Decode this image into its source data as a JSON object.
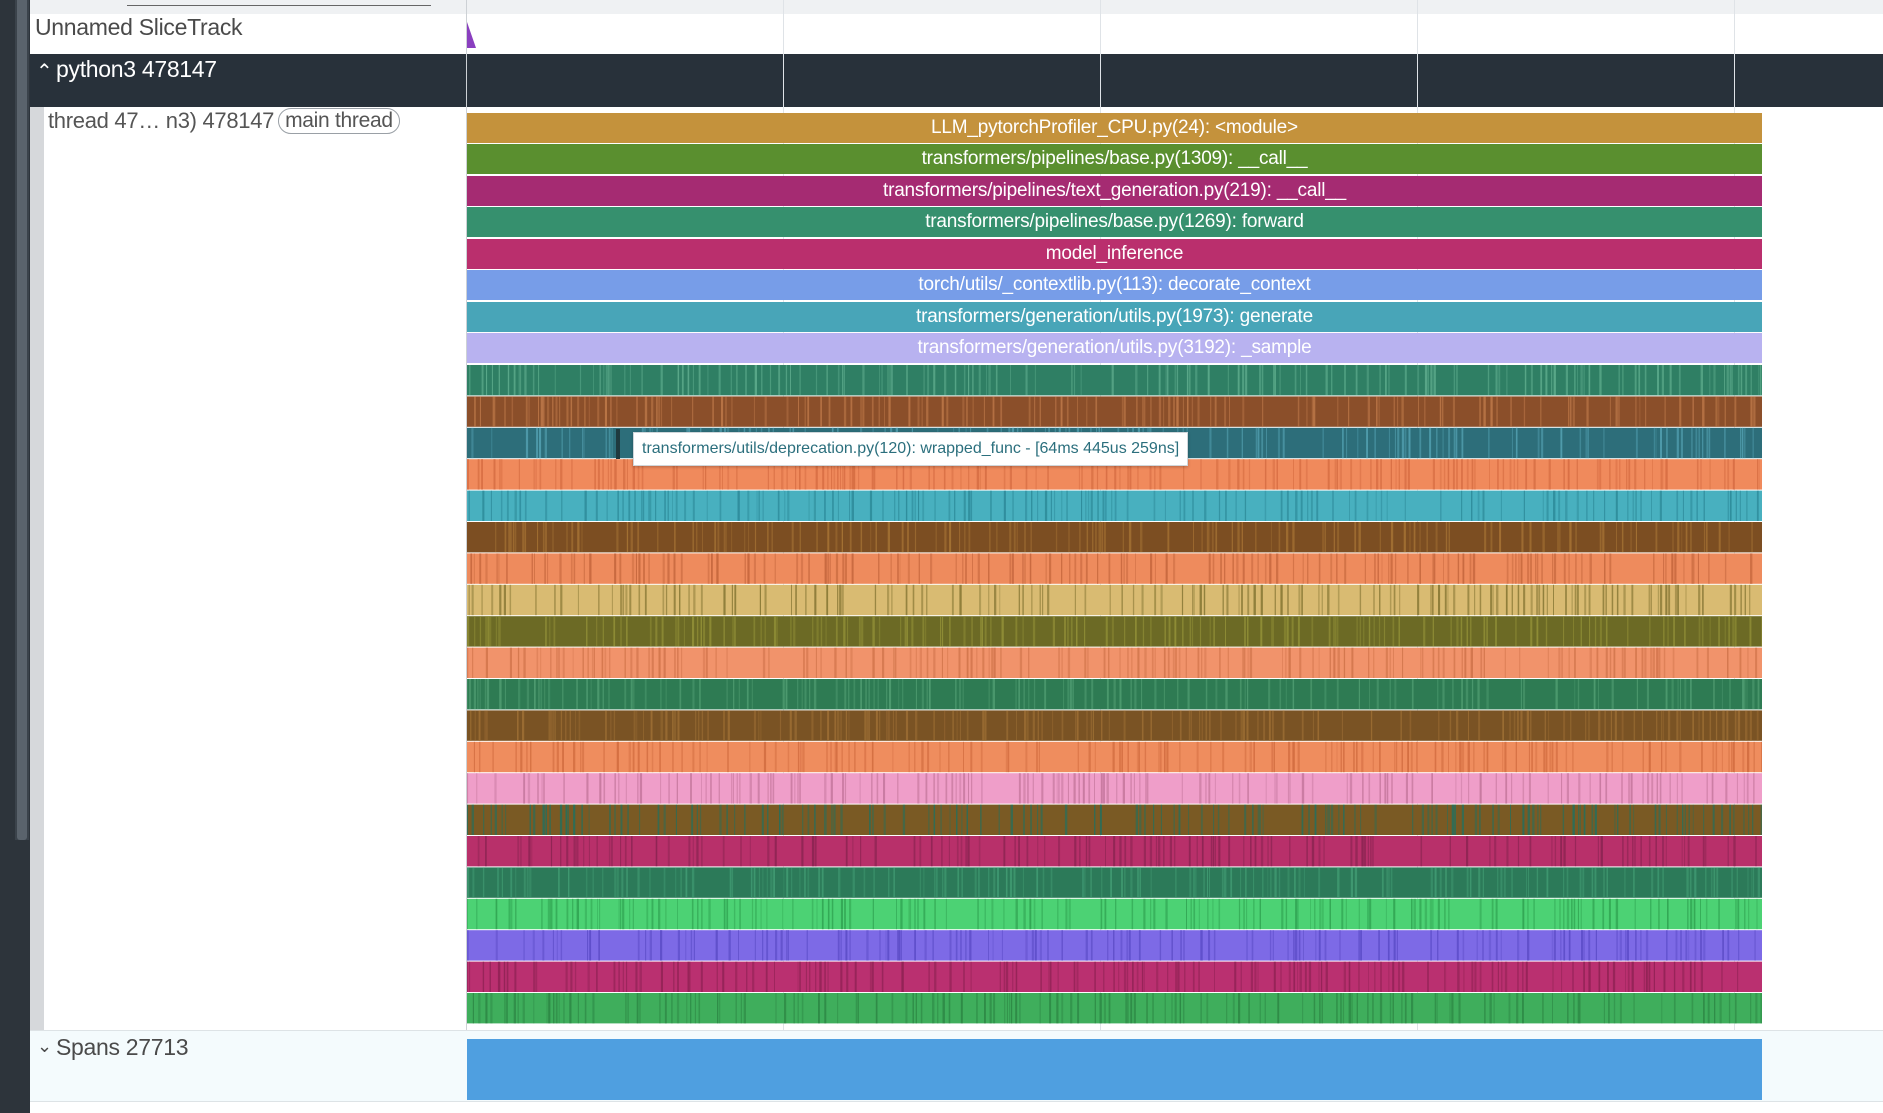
{
  "tracks": {
    "unnamed_track_label": "Unnamed SliceTrack",
    "process_group_title": "python3 478147",
    "thread_label": "thread 47… n3) 478147",
    "thread_chip": "main thread",
    "spans_label": "Spans 27713"
  },
  "slices": [
    {
      "label": "LLM_pytorchProfiler_CPU.py(24): <module>",
      "color": "#c4923c"
    },
    {
      "label": "transformers/pipelines/base.py(1309): __call__",
      "color": "#5a8f2f"
    },
    {
      "label": "transformers/pipelines/text_generation.py(219): __call__",
      "color": "#a52b72"
    },
    {
      "label": "transformers/pipelines/base.py(1269): forward",
      "color": "#36906e"
    },
    {
      "label": "model_inference",
      "color": "#ba2f6d"
    },
    {
      "label": "torch/utils/_contextlib.py(113): decorate_context",
      "color": "#779de8"
    },
    {
      "label": "transformers/generation/utils.py(1973): generate",
      "color": "#48a5b8"
    },
    {
      "label": "transformers/generation/utils.py(3192): _sample",
      "color": "#b8b2f0"
    }
  ],
  "dense_rows": [
    {
      "base": "#2f7f64",
      "stripe": "#5aa889"
    },
    {
      "base": "#8b4f2a",
      "stripe": "#b87446"
    },
    {
      "base": "#2d6e7a",
      "stripe": "#4f9bab"
    },
    {
      "base": "#f08a5c",
      "stripe": "#d86f44"
    },
    {
      "base": "#48b0bf",
      "stripe": "#2f8d9c"
    },
    {
      "base": "#7c4e22",
      "stripe": "#a27033"
    },
    {
      "base": "#ee8b5d",
      "stripe": "#c8693f"
    },
    {
      "base": "#d9bb72",
      "stripe": "#8e7d3a"
    },
    {
      "base": "#6c6a25",
      "stripe": "#8f8d36"
    },
    {
      "base": "#f1936b",
      "stripe": "#d4774e"
    },
    {
      "base": "#2e7b53",
      "stripe": "#4d9a6f"
    },
    {
      "base": "#7a5324",
      "stripe": "#9a6c33"
    },
    {
      "base": "#ef8d5e",
      "stripe": "#d46f42"
    },
    {
      "base": "#ef9ec9",
      "stripe": "#c87aa0"
    },
    {
      "base": "#7a5a24",
      "stripe": "#2e6d57"
    },
    {
      "base": "#b8306a",
      "stripe": "#8f2554"
    },
    {
      "base": "#2c7a59",
      "stripe": "#3f9870"
    },
    {
      "base": "#4cd274",
      "stripe": "#33a855"
    },
    {
      "base": "#7d6ae6",
      "stripe": "#5f4fca"
    },
    {
      "base": "#ba3070",
      "stripe": "#932356"
    },
    {
      "base": "#3fae5c",
      "stripe": "#2e8a46"
    }
  ],
  "tooltip": {
    "text": "transformers/utils/deprecation.py(120): wrapped_func - [64ms 445us 259ns]"
  }
}
